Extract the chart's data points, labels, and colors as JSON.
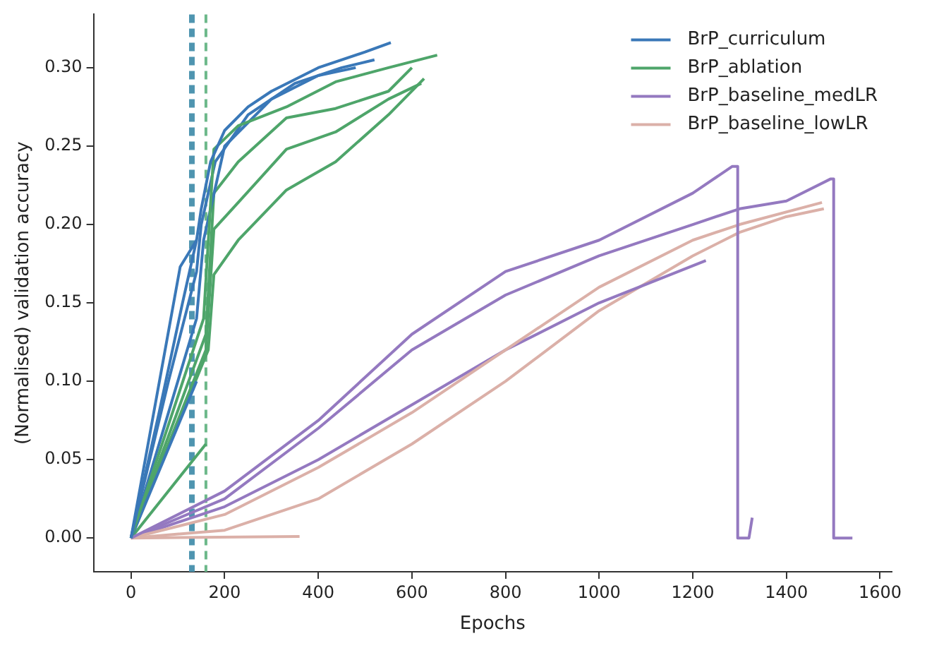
{
  "chart_data": {
    "type": "line",
    "xlabel": "Epochs",
    "ylabel": "(Normalised) validation accuracy",
    "xlim": [
      -80,
      1625
    ],
    "ylim": [
      -0.0215,
      0.334
    ],
    "xticks": [
      0,
      200,
      400,
      600,
      800,
      1000,
      1200,
      1400,
      1600
    ],
    "yticks": [
      {
        "value": 0,
        "label": "0.00"
      },
      {
        "value": 0.05,
        "label": "0.05"
      },
      {
        "value": 0.1,
        "label": "0.10"
      },
      {
        "value": 0.15,
        "label": "0.15"
      },
      {
        "value": 0.2,
        "label": "0.20"
      },
      {
        "value": 0.25,
        "label": "0.25"
      },
      {
        "value": 0.3,
        "label": "0.30"
      }
    ],
    "grid": false,
    "legend": "top right",
    "marker": "none",
    "line_style": "solid",
    "series": [
      {
        "name": "BrP_curriculum",
        "color": "#3a78b8",
        "x": [
          0,
          60,
          110,
          140,
          150,
          170,
          200,
          250,
          300,
          400,
          500,
          555
        ],
        "values": [
          0,
          0.08,
          0.15,
          0.19,
          0.21,
          0.24,
          0.26,
          0.275,
          0.285,
          0.3,
          0.31,
          0.316
        ]
      },
      {
        "name": "BrP_ablation",
        "color": "#4ea56a",
        "x": [
          0,
          155,
          177,
          229,
          332,
          437,
          550,
          654
        ],
        "values": [
          0,
          0.14,
          0.248,
          0.263,
          0.275,
          0.291,
          0.3,
          0.308
        ]
      },
      {
        "name": "BrP_baseline_medLR",
        "color": "#9479c0",
        "x": [
          0,
          200,
          400,
          600,
          800,
          1000,
          1200,
          1284,
          1296,
          1296,
          1320,
          1327
        ],
        "values": [
          0,
          0.03,
          0.075,
          0.13,
          0.17,
          0.19,
          0.22,
          0.237,
          0.237,
          0,
          0,
          0.013
        ]
      },
      {
        "name": "BrP_baseline_lowLR",
        "color": "#dbb0a8",
        "x": [
          0,
          200,
          400,
          600,
          800,
          1000,
          1200,
          1300,
          1476
        ],
        "values": [
          0,
          0.015,
          0.045,
          0.08,
          0.12,
          0.16,
          0.19,
          0.2,
          0.214
        ]
      },
      {
        "color": "#3a78b8",
        "x": [
          0,
          80,
          140,
          150,
          180,
          250,
          350,
          450,
          520
        ],
        "values": [
          0,
          0.1,
          0.17,
          0.2,
          0.24,
          0.27,
          0.29,
          0.3,
          0.305
        ]
      },
      {
        "color": "#3a78b8",
        "x": [
          0,
          140,
          155,
          200,
          300,
          400,
          480
        ],
        "values": [
          0,
          0.14,
          0.19,
          0.25,
          0.28,
          0.295,
          0.3
        ]
      },
      {
        "color": "#3a78b8",
        "x": [
          0,
          105,
          140
        ],
        "values": [
          0,
          0.173,
          0.19
        ]
      },
      {
        "color": "#3a78b8",
        "x": [
          0,
          140
        ],
        "values": [
          0,
          0.1
        ]
      },
      {
        "color": "#4ea56a",
        "x": [
          0,
          160,
          177,
          229,
          332,
          437,
          550,
          600
        ],
        "values": [
          0,
          0.13,
          0.22,
          0.24,
          0.268,
          0.274,
          0.285,
          0.3
        ]
      },
      {
        "color": "#4ea56a",
        "x": [
          0,
          160,
          177,
          229,
          332,
          437,
          550,
          620
        ],
        "values": [
          0,
          0.12,
          0.197,
          0.214,
          0.248,
          0.259,
          0.28,
          0.29
        ]
      },
      {
        "color": "#4ea56a",
        "x": [
          0,
          165,
          177,
          229,
          332,
          437,
          550,
          626
        ],
        "values": [
          0,
          0.12,
          0.168,
          0.19,
          0.222,
          0.24,
          0.27,
          0.293
        ]
      },
      {
        "color": "#4ea56a",
        "x": [
          0,
          160
        ],
        "values": [
          0,
          0.06
        ]
      },
      {
        "color": "#9479c0",
        "x": [
          0,
          200,
          400,
          600,
          800,
          1000,
          1200,
          1300,
          1400,
          1494,
          1501,
          1501,
          1541
        ],
        "values": [
          0,
          0.025,
          0.07,
          0.12,
          0.155,
          0.18,
          0.2,
          0.21,
          0.215,
          0.229,
          0.229,
          0,
          0
        ]
      },
      {
        "color": "#9479c0",
        "x": [
          0,
          200,
          400,
          600,
          800,
          1000,
          1228
        ],
        "values": [
          0,
          0.02,
          0.05,
          0.085,
          0.12,
          0.15,
          0.177
        ]
      },
      {
        "color": "#dbb0a8",
        "x": [
          0,
          200,
          400,
          600,
          800,
          1000,
          1200,
          1300,
          1400,
          1480
        ],
        "values": [
          0,
          0.005,
          0.025,
          0.06,
          0.1,
          0.145,
          0.18,
          0.195,
          0.205,
          0.21
        ]
      },
      {
        "color": "#dbb0a8",
        "x": [
          0,
          360
        ],
        "values": [
          0,
          0.001
        ]
      }
    ],
    "ref_lines": [
      {
        "axis": "x",
        "value": 127,
        "color": "#4f95b0",
        "line_style": "dashed"
      },
      {
        "axis": "x",
        "value": 133,
        "color": "#4f95b0",
        "line_style": "dashed"
      },
      {
        "axis": "x",
        "value": 160,
        "color": "#6cb88a",
        "line_style": "dashed"
      }
    ]
  }
}
